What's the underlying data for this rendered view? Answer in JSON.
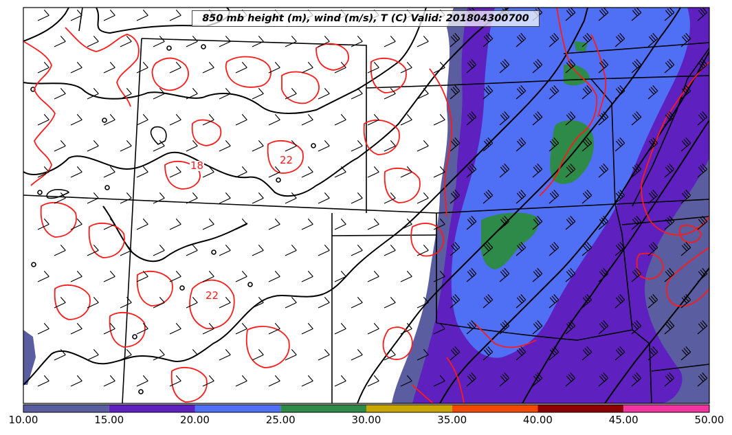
{
  "map": {
    "title": "850 mb height (m), wind (m/s), T (C) Valid: 201804300700",
    "colorbar": {
      "ticks": [
        "10.00",
        "15.00",
        "20.00",
        "25.00",
        "30.00",
        "35.00",
        "40.00",
        "45.00",
        "50.00"
      ],
      "bins": [
        {
          "from": 10,
          "to": 15,
          "color": "#5a5ea0"
        },
        {
          "from": 15,
          "to": 20,
          "color": "#5f20c0"
        },
        {
          "from": 20,
          "to": 25,
          "color": "#4f6ff5"
        },
        {
          "from": 25,
          "to": 30,
          "color": "#2e8a48"
        },
        {
          "from": 30,
          "to": 35,
          "color": "#c8a800"
        },
        {
          "from": 35,
          "to": 40,
          "color": "#f04a00"
        },
        {
          "from": 40,
          "to": 45,
          "color": "#8b0000"
        },
        {
          "from": 45,
          "to": 50,
          "color": "#f035a0"
        }
      ]
    },
    "temperature_labels": [
      "18",
      "22",
      "22"
    ],
    "colors": {
      "height_contour": "#000000",
      "temperature_contour": "#ff1a1a",
      "state_border": "#000000",
      "wind_barb": "#000000"
    }
  }
}
